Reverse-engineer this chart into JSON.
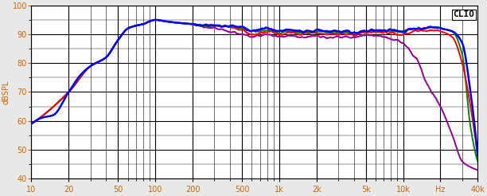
{
  "ylabel": "dBSPL",
  "clio_label": "CLIO",
  "xmin": 10,
  "xmax": 40000,
  "ymin": 40,
  "ymax": 100,
  "yticks": [
    40,
    50,
    60,
    70,
    80,
    90,
    100
  ],
  "xtick_labels": [
    "10",
    "20",
    "50",
    "100",
    "200",
    "500",
    "1k",
    "2k",
    "5k",
    "10k",
    "Hz",
    "40k"
  ],
  "xtick_values": [
    10,
    20,
    50,
    100,
    200,
    500,
    1000,
    2000,
    5000,
    10000,
    20000,
    40000
  ],
  "bg_color": "#ffffff",
  "plot_bg": "#f0f0f0",
  "grid_color": "#000000",
  "line_colors": {
    "0deg": "#0000ff",
    "15deg": "#ff0000",
    "30deg": "#008800",
    "45deg": "#990099"
  },
  "line_widths": {
    "0deg": 1.8,
    "15deg": 1.4,
    "30deg": 1.4,
    "45deg": 1.4
  },
  "curve_0deg": {
    "freqs": [
      10,
      12,
      15,
      20,
      25,
      30,
      40,
      50,
      60,
      70,
      80,
      90,
      100,
      120,
      150,
      200,
      250,
      300,
      400,
      500,
      600,
      700,
      800,
      900,
      1000,
      1200,
      1500,
      2000,
      2500,
      3000,
      4000,
      5000,
      6000,
      7000,
      8000,
      9000,
      10000,
      12000,
      15000,
      17000,
      20000,
      25000,
      30000,
      35000,
      40000
    ],
    "values": [
      59,
      61,
      62,
      70,
      76,
      79,
      82,
      88,
      92,
      93,
      93.5,
      94.5,
      95,
      94.5,
      94,
      93.5,
      93,
      93,
      93,
      92.5,
      91,
      91.5,
      92,
      91.5,
      91,
      91.5,
      91,
      91.5,
      91,
      91,
      90.5,
      91,
      91.5,
      91,
      91.5,
      91,
      91,
      92,
      92,
      92.5,
      92,
      91,
      87,
      70,
      48
    ]
  },
  "curve_15deg": {
    "freqs": [
      10,
      20,
      30,
      40,
      50,
      60,
      70,
      80,
      90,
      100,
      120,
      150,
      200,
      250,
      300,
      400,
      500,
      600,
      700,
      800,
      900,
      1000,
      1200,
      1500,
      2000,
      2500,
      3000,
      4000,
      5000,
      6000,
      7000,
      8000,
      9000,
      10000,
      12000,
      15000,
      17000,
      20000,
      25000,
      30000,
      35000,
      40000
    ],
    "values": [
      59,
      70,
      79,
      82,
      88,
      92,
      93,
      93.5,
      94.5,
      95,
      94.5,
      94,
      93.5,
      93,
      93,
      92.5,
      91.5,
      90,
      90.5,
      91,
      90.5,
      90,
      90.5,
      90,
      90.5,
      90,
      90,
      90,
      90.5,
      91,
      90.5,
      90.5,
      90,
      90,
      91,
      91,
      91.5,
      91,
      89,
      80,
      65,
      48
    ]
  },
  "curve_30deg": {
    "freqs": [
      10,
      20,
      30,
      40,
      50,
      60,
      70,
      80,
      90,
      100,
      120,
      150,
      200,
      250,
      300,
      400,
      500,
      600,
      700,
      800,
      900,
      1000,
      1200,
      1500,
      2000,
      2500,
      3000,
      4000,
      5000,
      6000,
      7000,
      8000,
      9000,
      10000,
      12000,
      15000,
      17000,
      20000,
      25000,
      30000,
      35000,
      40000
    ],
    "values": [
      59,
      70,
      79,
      82,
      88,
      92,
      93,
      93.5,
      94.5,
      95,
      94.5,
      94,
      93.5,
      93,
      93,
      92.5,
      92,
      91,
      91,
      91.5,
      91,
      90.5,
      91,
      90.5,
      91,
      90.5,
      90.5,
      90.5,
      91,
      91,
      91,
      91,
      91,
      91,
      92,
      92,
      92.5,
      92,
      91,
      83,
      58,
      46
    ]
  },
  "curve_45deg": {
    "freqs": [
      10,
      20,
      30,
      40,
      50,
      60,
      70,
      80,
      90,
      100,
      120,
      150,
      200,
      250,
      300,
      400,
      500,
      600,
      700,
      800,
      900,
      1000,
      1200,
      1500,
      2000,
      2500,
      3000,
      4000,
      5000,
      6000,
      7000,
      8000,
      9000,
      10000,
      11000,
      12000,
      13000,
      14000,
      15000,
      17000,
      20000,
      25000,
      30000,
      35000,
      40000
    ],
    "values": [
      59,
      70,
      79,
      82,
      88,
      92,
      93,
      93.5,
      94.5,
      95,
      94.5,
      94,
      93.5,
      92.5,
      92,
      91,
      90,
      89,
      89.5,
      90,
      89.5,
      89,
      89.5,
      89,
      89.5,
      89,
      89,
      89,
      89.5,
      89.5,
      89,
      88.5,
      88,
      87,
      85,
      83,
      81,
      78,
      74,
      70,
      65,
      55,
      46,
      44,
      43
    ]
  }
}
